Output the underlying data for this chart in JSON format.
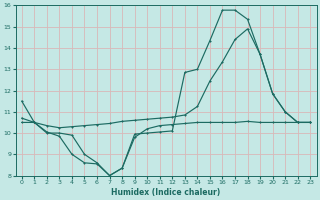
{
  "xlabel": "Humidex (Indice chaleur)",
  "xlim": [
    -0.5,
    23.5
  ],
  "ylim": [
    8,
    16
  ],
  "yticks": [
    8,
    9,
    10,
    11,
    12,
    13,
    14,
    15,
    16
  ],
  "xticks": [
    0,
    1,
    2,
    3,
    4,
    5,
    6,
    7,
    8,
    9,
    10,
    11,
    12,
    13,
    14,
    15,
    16,
    17,
    18,
    19,
    20,
    21,
    22,
    23
  ],
  "bg_color": "#c5e8e5",
  "line_color": "#1c6b62",
  "grid_color": "#d9b8b8",
  "line1_x": [
    0,
    1,
    2,
    3,
    4,
    5,
    6,
    7,
    8,
    9,
    10,
    11,
    12,
    13,
    14,
    15,
    16,
    17,
    18,
    19,
    20,
    21,
    22,
    23
  ],
  "line1_y": [
    11.5,
    10.5,
    10.0,
    10.0,
    9.9,
    9.0,
    8.6,
    8.0,
    8.35,
    9.95,
    10.0,
    10.05,
    10.1,
    12.85,
    13.0,
    14.35,
    15.78,
    15.78,
    15.35,
    13.7,
    11.85,
    11.0,
    10.5,
    10.5
  ],
  "line2_x": [
    0,
    1,
    2,
    3,
    4,
    5,
    6,
    7,
    8,
    9,
    10,
    11,
    12,
    13,
    14,
    15,
    16,
    17,
    18,
    19,
    20,
    21,
    22,
    23
  ],
  "line2_y": [
    10.7,
    10.5,
    10.35,
    10.25,
    10.3,
    10.35,
    10.4,
    10.45,
    10.55,
    10.6,
    10.65,
    10.7,
    10.75,
    10.85,
    11.25,
    12.45,
    13.35,
    14.4,
    14.9,
    13.7,
    11.85,
    11.0,
    10.5,
    10.5
  ],
  "line3_x": [
    0,
    1,
    2,
    3,
    4,
    5,
    6,
    7,
    8,
    9,
    10,
    11,
    12,
    13,
    14,
    15,
    16,
    17,
    18,
    19,
    20,
    21,
    22,
    23
  ],
  "line3_y": [
    10.5,
    10.5,
    10.05,
    9.85,
    9.0,
    8.6,
    8.55,
    8.0,
    8.35,
    9.8,
    10.2,
    10.35,
    10.4,
    10.45,
    10.5,
    10.5,
    10.5,
    10.5,
    10.55,
    10.5,
    10.5,
    10.5,
    10.5,
    10.5
  ]
}
